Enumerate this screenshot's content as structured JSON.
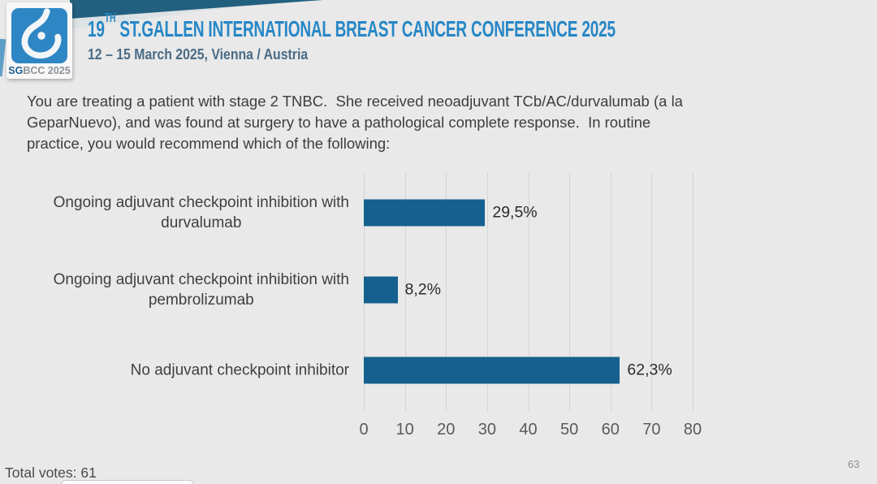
{
  "header": {
    "logo": {
      "sg": "SG",
      "rest": "BCC 2025"
    },
    "title_num": "19",
    "title_sup": "TH",
    "title_rest": " ST.GALLEN INTERNATIONAL BREAST CANCER CONFERENCE 2025",
    "subtitle": "12 – 15 March 2025, Vienna / Austria"
  },
  "question": {
    "lines": [
      "You are treating a patient with stage 2 TNBC.  She received neoadjuvant TCb/AC/durvalumab (a la",
      "GeparNuevo), and was found at surgery to have a pathological complete response.  In routine",
      "practice, you would recommend which of the following:"
    ]
  },
  "chart_data": {
    "type": "bar",
    "orientation": "horizontal",
    "categories": [
      [
        "Ongoing adjuvant checkpoint inhibition with",
        "durvalumab"
      ],
      [
        "Ongoing adjuvant checkpoint inhibition with",
        "pembrolizumab"
      ],
      [
        "No adjuvant checkpoint inhibitor"
      ]
    ],
    "values": [
      29.5,
      8.2,
      62.3
    ],
    "value_labels": [
      "29,5%",
      "8,2%",
      "62,3%"
    ],
    "xlim": [
      0,
      80
    ],
    "xticks": [
      0,
      10,
      20,
      30,
      40,
      50,
      60,
      70,
      80
    ],
    "grid": true,
    "legend": null,
    "bar_color": "#15608E"
  },
  "footer": {
    "total_votes": "Total votes: 61",
    "page_number": "63"
  },
  "colors": {
    "background": "#E9E9E9",
    "accent_blue": "#2787C6",
    "bar_blue": "#15608E",
    "wedge_teal": "#23607F"
  }
}
